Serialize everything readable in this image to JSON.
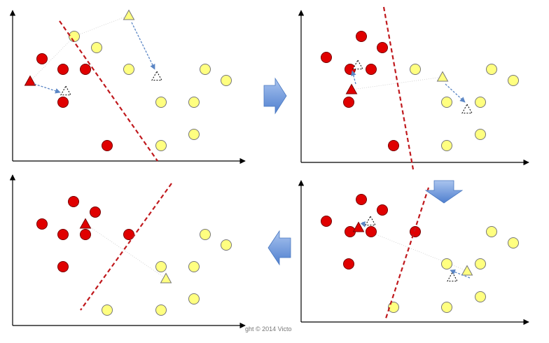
{
  "watermark": "ght © 2014 Victo"
}
